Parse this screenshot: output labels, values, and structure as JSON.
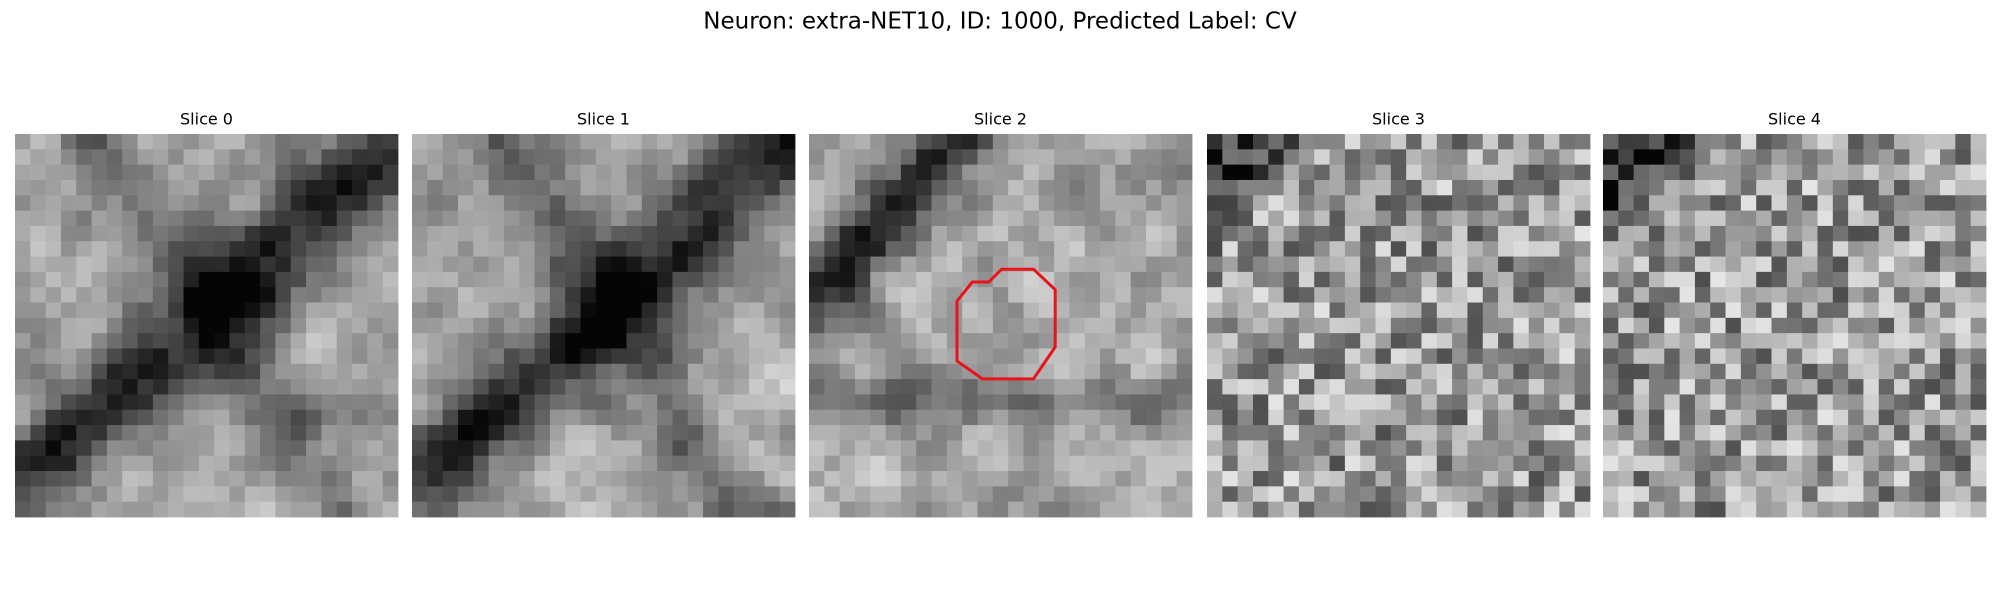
{
  "title": "Neuron: extra-NET10, ID: 1000, Predicted Label: CV",
  "panels": [
    {
      "title": "Slice 0"
    },
    {
      "title": "Slice 1"
    },
    {
      "title": "Slice 2"
    },
    {
      "title": "Slice 3"
    },
    {
      "title": "Slice 4"
    }
  ]
}
